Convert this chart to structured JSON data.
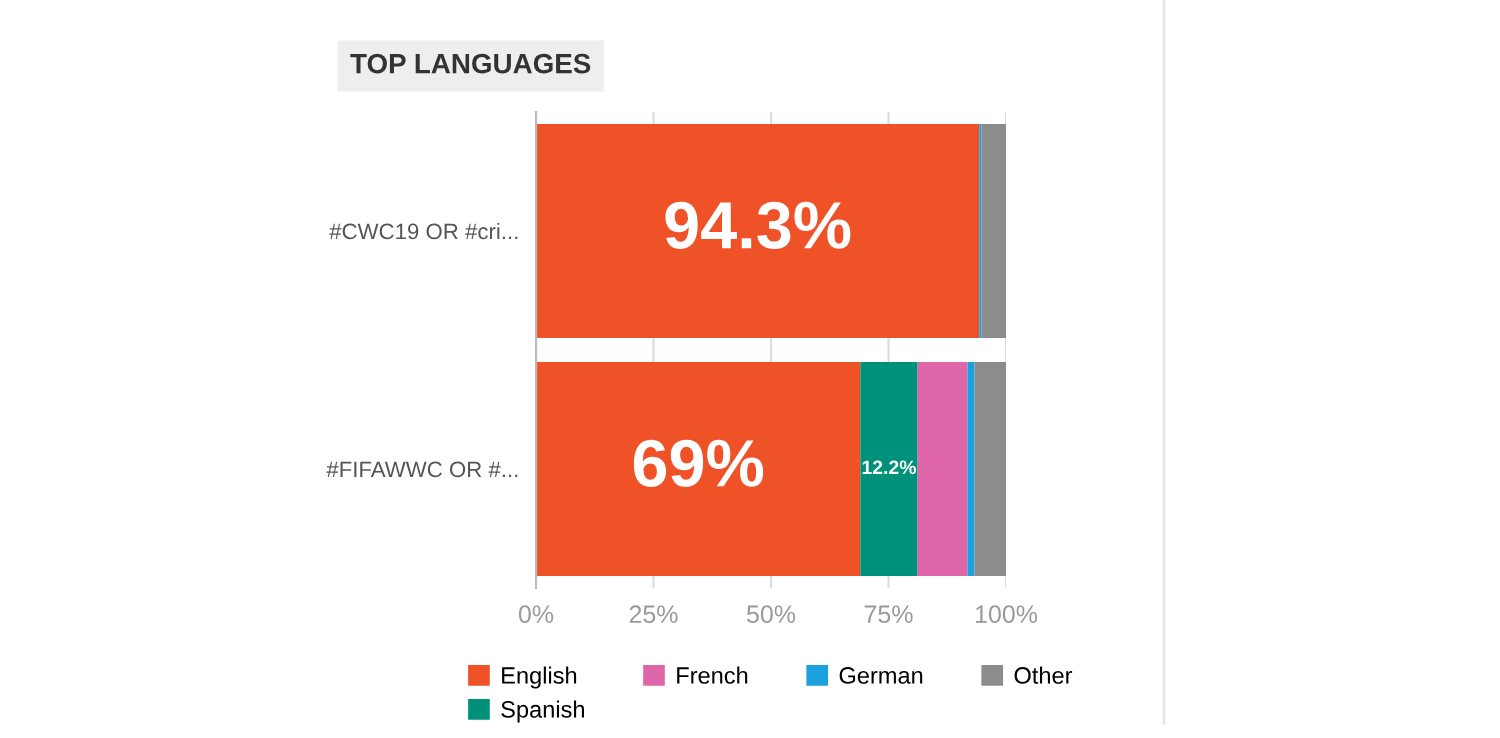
{
  "chart_data": {
    "type": "bar",
    "orientation": "horizontal",
    "stacked": true,
    "title": "TOP LANGUAGES",
    "categories": [
      "#CWC19 OR #cri...",
      "#FIFAWWC OR #..."
    ],
    "series": [
      {
        "name": "English",
        "color": "#f05228",
        "values": [
          94.3,
          69
        ],
        "value_labels": [
          "94.3%",
          "69%"
        ]
      },
      {
        "name": "Spanish",
        "color": "#00917a",
        "values": [
          0,
          12.2
        ],
        "value_labels": [
          null,
          "12.2%"
        ]
      },
      {
        "name": "French",
        "color": "#e066aa",
        "values": [
          0,
          10.6
        ]
      },
      {
        "name": "German",
        "color": "#1ba1dc",
        "values": [
          0.5,
          1.5
        ]
      },
      {
        "name": "Other",
        "color": "#8c8c8c",
        "values": [
          5.2,
          6.7
        ]
      }
    ],
    "xlim": [
      0,
      100
    ],
    "xticks": [
      {
        "value": 0,
        "label": "0%"
      },
      {
        "value": 25,
        "label": "25%"
      },
      {
        "value": 50,
        "label": "50%"
      },
      {
        "value": 75,
        "label": "75%"
      },
      {
        "value": 100,
        "label": "100%"
      }
    ],
    "grid": "x",
    "legend": "bottom"
  }
}
